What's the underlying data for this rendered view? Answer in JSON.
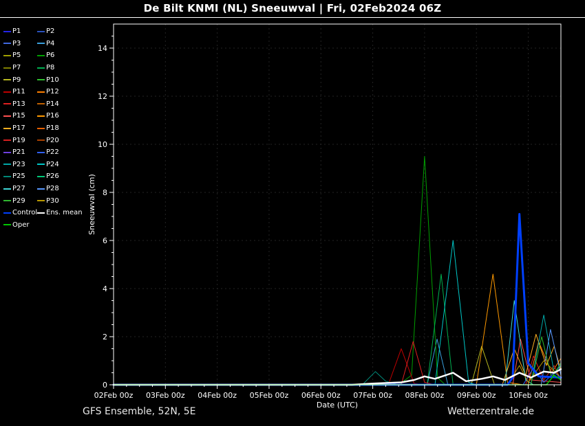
{
  "title": "De Bilt KNMI  (NL)  Sneeuwval | Fri, 02Feb2024 06Z",
  "footer": {
    "left": "GFS Ensemble, 52N, 5E",
    "right": "Wetterzentrale.de"
  },
  "chart_data": {
    "type": "line",
    "title": "De Bilt KNMI  (NL)  Sneeuwval | Fri, 02Feb2024 06Z",
    "xlabel": "Date (UTC)",
    "ylabel": "Sneeuwval (cm)",
    "ylim": [
      0,
      15
    ],
    "x_domain_days": [
      0,
      8.63
    ],
    "y_ticks": [
      0,
      2,
      4,
      6,
      8,
      10,
      12,
      14
    ],
    "x_ticks": [
      {
        "day": 0,
        "label": "02Feb 00z"
      },
      {
        "day": 1,
        "label": "03Feb 00z"
      },
      {
        "day": 2,
        "label": "04Feb 00z"
      },
      {
        "day": 3,
        "label": "05Feb 00z"
      },
      {
        "day": 4,
        "label": "06Feb 00z"
      },
      {
        "day": 5,
        "label": "07Feb 00z"
      },
      {
        "day": 6,
        "label": "08Feb 00z"
      },
      {
        "day": 7,
        "label": "09Feb 00z"
      },
      {
        "day": 8,
        "label": "10Feb 00z"
      }
    ],
    "grid": "dotted-dark",
    "legend_position": "top-left-outside",
    "series": [
      {
        "name": "P1",
        "color": "#2424e8",
        "width": 1,
        "points": [
          [
            0,
            0
          ],
          [
            8.63,
            0
          ]
        ]
      },
      {
        "name": "P2",
        "color": "#2a52be",
        "width": 1,
        "points": [
          [
            0,
            0
          ],
          [
            8.63,
            0
          ]
        ]
      },
      {
        "name": "P3",
        "color": "#4169e1",
        "width": 1,
        "points": [
          [
            0,
            0
          ],
          [
            8.63,
            0
          ]
        ]
      },
      {
        "name": "P4",
        "color": "#3aa0dd",
        "width": 1,
        "points": [
          [
            0,
            0
          ],
          [
            6.05,
            0
          ],
          [
            6.24,
            1.9
          ],
          [
            6.45,
            0
          ],
          [
            8.63,
            0
          ]
        ]
      },
      {
        "name": "P5",
        "color": "#a0a000",
        "width": 1,
        "points": [
          [
            0,
            0
          ],
          [
            8.63,
            0
          ]
        ]
      },
      {
        "name": "P6",
        "color": "#00a000",
        "width": 1,
        "points": [
          [
            0,
            0
          ],
          [
            5.5,
            0
          ],
          [
            5.75,
            0.4
          ],
          [
            6.0,
            9.5
          ],
          [
            6.25,
            0.3
          ],
          [
            6.4,
            0
          ],
          [
            8.63,
            0
          ]
        ]
      },
      {
        "name": "P7",
        "color": "#808000",
        "width": 1,
        "points": [
          [
            0,
            0
          ],
          [
            8.63,
            0
          ]
        ]
      },
      {
        "name": "P8",
        "color": "#00b050",
        "width": 1,
        "points": [
          [
            0,
            0
          ],
          [
            6.05,
            0
          ],
          [
            6.32,
            4.6
          ],
          [
            6.55,
            0
          ],
          [
            8.63,
            0
          ]
        ]
      },
      {
        "name": "P9",
        "color": "#b8b820",
        "width": 1,
        "points": [
          [
            0,
            0
          ],
          [
            6.9,
            0
          ],
          [
            7.1,
            1.6
          ],
          [
            7.35,
            0
          ],
          [
            8.63,
            0
          ]
        ]
      },
      {
        "name": "P10",
        "color": "#30c030",
        "width": 1,
        "points": [
          [
            0,
            0
          ],
          [
            8.63,
            0
          ]
        ]
      },
      {
        "name": "P11",
        "color": "#c00000",
        "width": 1,
        "points": [
          [
            0,
            0
          ],
          [
            5.3,
            0
          ],
          [
            5.55,
            1.5
          ],
          [
            5.8,
            0.05
          ],
          [
            6.0,
            0
          ],
          [
            8.63,
            0
          ]
        ]
      },
      {
        "name": "P12",
        "color": "#ff8000",
        "width": 1,
        "points": [
          [
            0,
            0
          ],
          [
            8.0,
            0
          ],
          [
            8.2,
            1.8
          ],
          [
            8.45,
            0.5
          ],
          [
            8.63,
            1.1
          ]
        ]
      },
      {
        "name": "P13",
        "color": "#e02020",
        "width": 1,
        "points": [
          [
            0,
            0
          ],
          [
            5.55,
            0
          ],
          [
            5.78,
            1.8
          ],
          [
            6.0,
            0.1
          ],
          [
            6.2,
            0
          ],
          [
            8.63,
            0
          ]
        ]
      },
      {
        "name": "P14",
        "color": "#c06000",
        "width": 1,
        "points": [
          [
            0,
            0
          ],
          [
            8.63,
            0
          ]
        ]
      },
      {
        "name": "P15",
        "color": "#ff5050",
        "width": 1,
        "points": [
          [
            0,
            0
          ],
          [
            7.7,
            0
          ],
          [
            7.85,
            1.9
          ],
          [
            8.05,
            0.2
          ],
          [
            8.63,
            0.1
          ]
        ]
      },
      {
        "name": "P16",
        "color": "#ff9900",
        "width": 1,
        "points": [
          [
            0,
            0
          ],
          [
            7.0,
            0
          ],
          [
            7.32,
            4.6
          ],
          [
            7.6,
            0.1
          ],
          [
            7.9,
            0
          ],
          [
            8.63,
            0
          ]
        ]
      },
      {
        "name": "P17",
        "color": "#ffb020",
        "width": 1,
        "points": [
          [
            0,
            0
          ],
          [
            7.5,
            0
          ],
          [
            7.73,
            1.5
          ],
          [
            7.95,
            0.4
          ],
          [
            8.15,
            2.1
          ],
          [
            8.35,
            0.8
          ],
          [
            8.5,
            1.6
          ],
          [
            8.63,
            0.6
          ]
        ]
      },
      {
        "name": "P18",
        "color": "#e86000",
        "width": 1,
        "points": [
          [
            0,
            0
          ],
          [
            8.63,
            0
          ]
        ]
      },
      {
        "name": "P19",
        "color": "#d82020",
        "width": 1,
        "points": [
          [
            0,
            0
          ],
          [
            7.95,
            0
          ],
          [
            8.1,
            1.2
          ],
          [
            8.3,
            0.2
          ],
          [
            8.5,
            0.8
          ],
          [
            8.63,
            0.2
          ]
        ]
      },
      {
        "name": "P20",
        "color": "#a84000",
        "width": 1,
        "points": [
          [
            0,
            0
          ],
          [
            8.63,
            0
          ]
        ]
      },
      {
        "name": "P21",
        "color": "#7040e0",
        "width": 1,
        "points": [
          [
            0,
            0
          ],
          [
            8.63,
            0
          ]
        ]
      },
      {
        "name": "P22",
        "color": "#3060ff",
        "width": 1,
        "points": [
          [
            0,
            0
          ],
          [
            7.9,
            0
          ],
          [
            8.1,
            0.7
          ],
          [
            8.3,
            0.1
          ],
          [
            8.5,
            0.5
          ],
          [
            8.63,
            0.3
          ]
        ]
      },
      {
        "name": "P23",
        "color": "#00a8a8",
        "width": 1,
        "points": [
          [
            0,
            0
          ],
          [
            8.05,
            0
          ],
          [
            8.3,
            2.9
          ],
          [
            8.5,
            0.5
          ],
          [
            8.63,
            0.8
          ]
        ]
      },
      {
        "name": "P24",
        "color": "#00c8c8",
        "width": 1,
        "points": [
          [
            0,
            0
          ],
          [
            6.2,
            0
          ],
          [
            6.55,
            6.0
          ],
          [
            6.85,
            0.1
          ],
          [
            7.0,
            0
          ],
          [
            8.63,
            0
          ]
        ]
      },
      {
        "name": "P25",
        "color": "#008878",
        "width": 1,
        "points": [
          [
            0,
            0
          ],
          [
            4.8,
            0
          ],
          [
            5.05,
            0.55
          ],
          [
            5.25,
            0.15
          ],
          [
            5.5,
            0
          ],
          [
            8.63,
            0
          ]
        ]
      },
      {
        "name": "P26",
        "color": "#00c878",
        "width": 1,
        "points": [
          [
            0,
            0
          ],
          [
            8.63,
            0
          ]
        ]
      },
      {
        "name": "P27",
        "color": "#40d8d8",
        "width": 1,
        "points": [
          [
            0,
            0
          ],
          [
            7.55,
            0
          ],
          [
            7.73,
            3.5
          ],
          [
            7.95,
            0.2
          ],
          [
            8.1,
            0
          ],
          [
            8.63,
            0
          ]
        ]
      },
      {
        "name": "P28",
        "color": "#5898ff",
        "width": 1,
        "points": [
          [
            0,
            0
          ],
          [
            8.25,
            0
          ],
          [
            8.43,
            2.3
          ],
          [
            8.63,
            0.4
          ]
        ]
      },
      {
        "name": "P29",
        "color": "#30b830",
        "width": 1,
        "points": [
          [
            0,
            0
          ],
          [
            8.05,
            0
          ],
          [
            8.26,
            2.0
          ],
          [
            8.45,
            0.3
          ],
          [
            8.63,
            0.9
          ]
        ]
      },
      {
        "name": "P30",
        "color": "#b89800",
        "width": 1,
        "points": [
          [
            0,
            0
          ],
          [
            7.6,
            0
          ],
          [
            7.83,
            0.8
          ],
          [
            8.0,
            0.1
          ],
          [
            8.3,
            1.0
          ],
          [
            8.63,
            0.3
          ]
        ]
      },
      {
        "name": "Control",
        "color": "#0040ff",
        "width": 3,
        "points": [
          [
            0,
            0
          ],
          [
            7.6,
            0
          ],
          [
            7.7,
            0.3
          ],
          [
            7.83,
            7.1
          ],
          [
            8.0,
            0.9
          ],
          [
            8.2,
            0.35
          ],
          [
            8.63,
            0.3
          ]
        ]
      },
      {
        "name": "Ens. mean",
        "color": "#ffffff",
        "width": 2.5,
        "points": [
          [
            0,
            0
          ],
          [
            4.6,
            0
          ],
          [
            5.0,
            0.05
          ],
          [
            5.55,
            0.1
          ],
          [
            5.8,
            0.2
          ],
          [
            6.0,
            0.35
          ],
          [
            6.2,
            0.25
          ],
          [
            6.55,
            0.5
          ],
          [
            6.8,
            0.15
          ],
          [
            7.1,
            0.25
          ],
          [
            7.32,
            0.35
          ],
          [
            7.55,
            0.2
          ],
          [
            7.83,
            0.5
          ],
          [
            8.05,
            0.3
          ],
          [
            8.3,
            0.55
          ],
          [
            8.5,
            0.5
          ],
          [
            8.63,
            0.65
          ]
        ]
      },
      {
        "name": "Oper",
        "color": "#00c800",
        "width": 1.5,
        "points": [
          [
            0,
            0
          ],
          [
            8.35,
            0
          ],
          [
            8.5,
            0.4
          ],
          [
            8.63,
            0.2
          ]
        ]
      }
    ]
  }
}
